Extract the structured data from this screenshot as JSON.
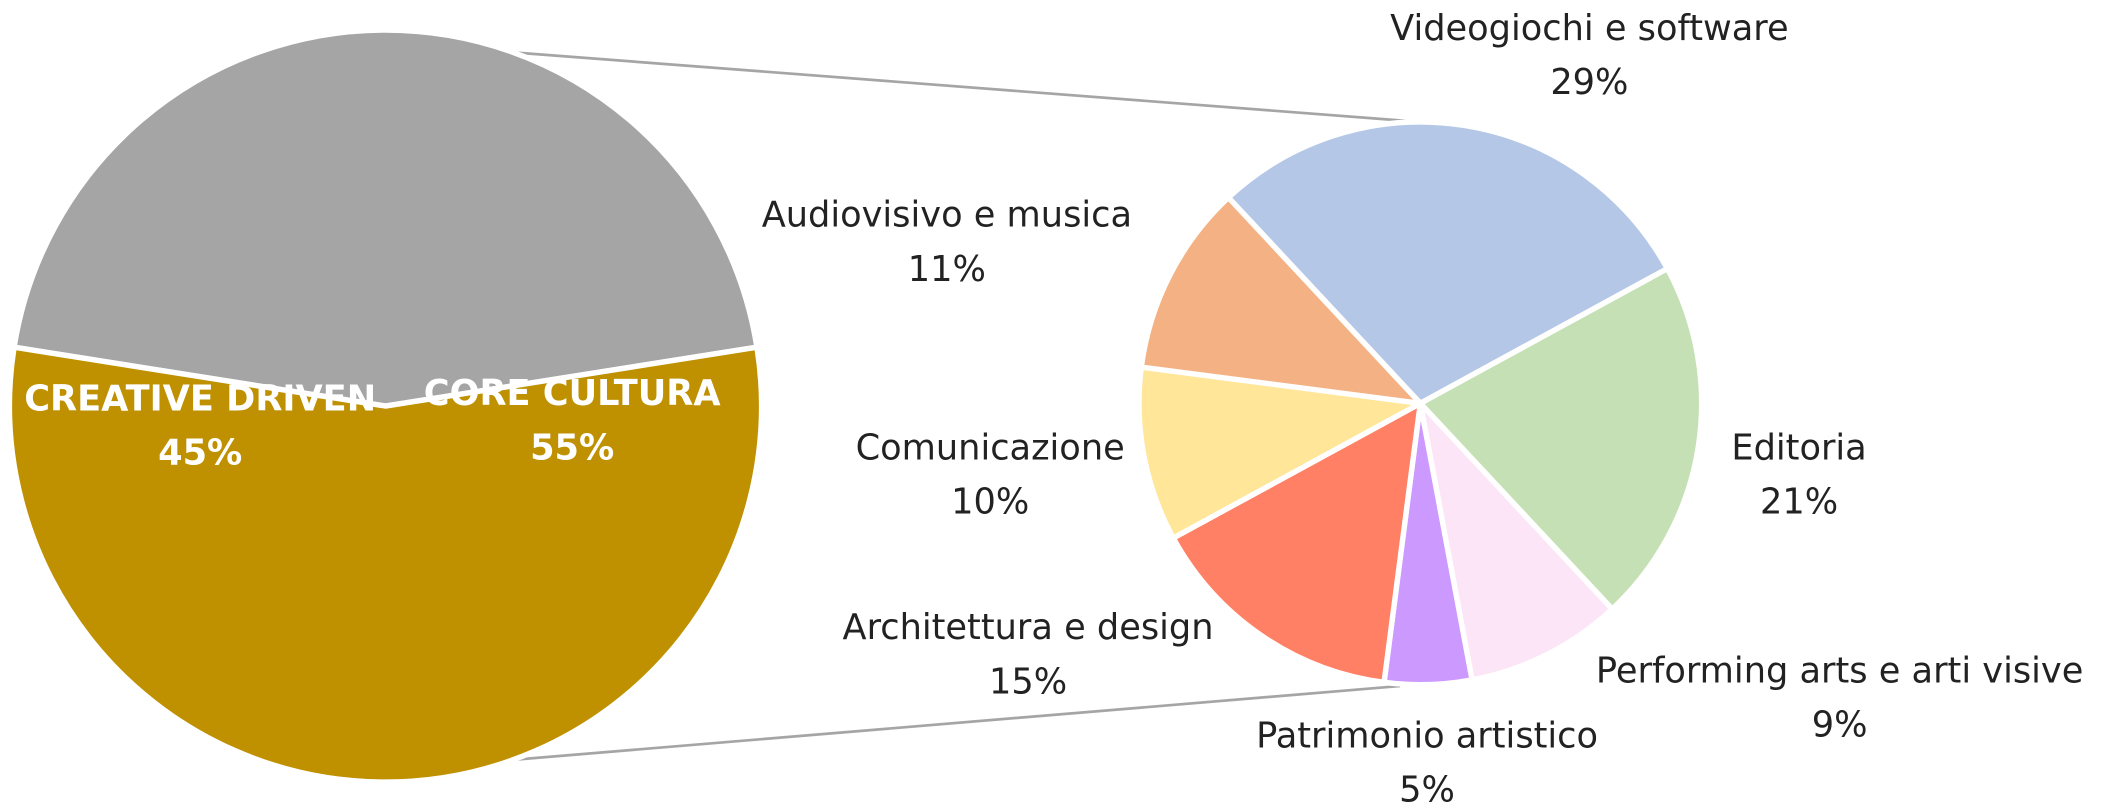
{
  "chart_data": [
    {
      "type": "pie",
      "categories": [
        "CREATIVE DRIVEN",
        "CORE CULTURA"
      ],
      "values": [
        45,
        55
      ],
      "value_labels": [
        "45%",
        "55%"
      ],
      "colors": [
        "#a5a5a5",
        "#bf9000"
      ]
    },
    {
      "type": "pie",
      "categories": [
        "Videogiochi e software",
        "Editoria",
        "Performing arts e arti visive",
        "Patrimonio artistico",
        "Architettura e design",
        "Comunicazione",
        "Audiovisivo e musica"
      ],
      "values": [
        29,
        21,
        9,
        5,
        15,
        10,
        11
      ],
      "value_labels": [
        "29%",
        "21%",
        "9%",
        "5%",
        "15%",
        "10%",
        "11%"
      ],
      "colors": [
        "#b4c7e7",
        "#c5e0b4",
        "#fbe5f6",
        "#cc99ff",
        "#ff8064",
        "#ffe699",
        "#f4b183"
      ]
    }
  ]
}
